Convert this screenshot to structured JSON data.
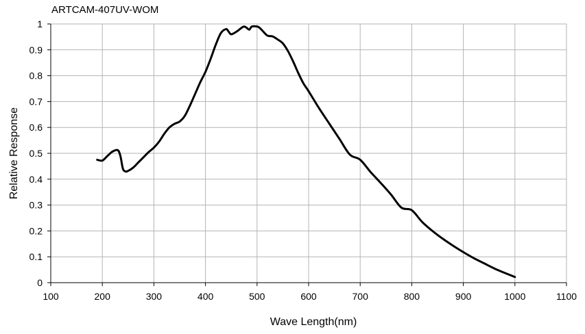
{
  "chart_data": {
    "type": "line",
    "title": "ARTCAM-407UV-WOM",
    "xlabel": "Wave Length(nm)",
    "ylabel": "Relative  Response",
    "xlim": [
      100,
      1100
    ],
    "ylim": [
      0,
      1
    ],
    "grid": true,
    "x_ticks": [
      "100",
      "200",
      "300",
      "400",
      "500",
      "600",
      "700",
      "800",
      "900",
      "1000",
      "1100"
    ],
    "y_ticks": [
      "0",
      "0.1",
      "0.2",
      "0.3",
      "0.4",
      "0.5",
      "0.6",
      "0.7",
      "0.8",
      "0.9",
      "1"
    ],
    "line_color": "#000000",
    "grid_color": "#b3b3b3",
    "series": [
      {
        "x": [
          190,
          200,
          210,
          220,
          230,
          235,
          240,
          245,
          250,
          260,
          270,
          280,
          290,
          300,
          310,
          320,
          330,
          340,
          350,
          360,
          370,
          380,
          390,
          400,
          410,
          420,
          430,
          440,
          445,
          450,
          460,
          470,
          475,
          480,
          485,
          490,
          500,
          505,
          510,
          520,
          530,
          540,
          550,
          560,
          570,
          580,
          590,
          600,
          620,
          640,
          660,
          680,
          700,
          720,
          740,
          760,
          780,
          800,
          820,
          840,
          860,
          880,
          900,
          920,
          940,
          960,
          980,
          1000
        ],
        "y": [
          0.475,
          0.472,
          0.49,
          0.507,
          0.512,
          0.49,
          0.44,
          0.43,
          0.432,
          0.445,
          0.465,
          0.485,
          0.505,
          0.522,
          0.545,
          0.575,
          0.6,
          0.614,
          0.623,
          0.645,
          0.685,
          0.73,
          0.775,
          0.815,
          0.865,
          0.92,
          0.965,
          0.98,
          0.97,
          0.96,
          0.97,
          0.985,
          0.99,
          0.985,
          0.978,
          0.99,
          0.99,
          0.985,
          0.975,
          0.955,
          0.952,
          0.94,
          0.925,
          0.895,
          0.855,
          0.81,
          0.77,
          0.74,
          0.675,
          0.615,
          0.555,
          0.495,
          0.475,
          0.428,
          0.385,
          0.34,
          0.29,
          0.28,
          0.235,
          0.2,
          0.17,
          0.143,
          0.118,
          0.095,
          0.075,
          0.055,
          0.038,
          0.022
        ]
      }
    ]
  }
}
